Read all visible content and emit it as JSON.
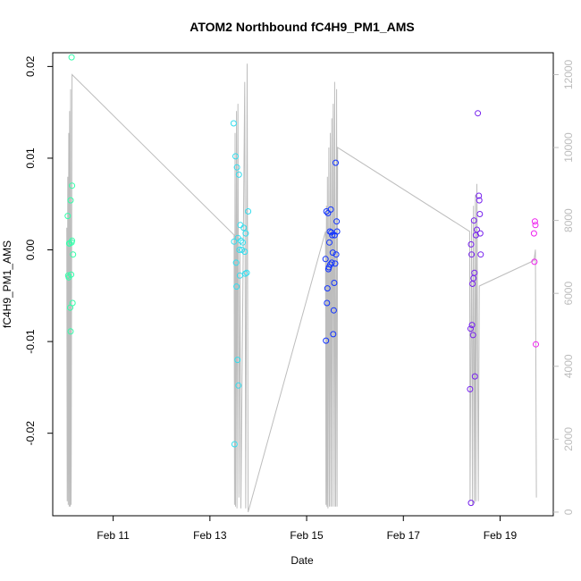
{
  "chart_data": {
    "type": "scatter",
    "title": "ATOM2 Northbound fC4H9_PM1_AMS",
    "xlabel": "Date",
    "ylabel": "fC4H9_PM1_AMS",
    "x_ticks": [
      "Feb 11",
      "Feb 13",
      "Feb 15",
      "Feb 17",
      "Feb 19"
    ],
    "x_tick_days": [
      11,
      13,
      15,
      17,
      19
    ],
    "xlim_days": [
      9.75,
      20.1
    ],
    "ylim": [
      -0.029,
      0.0215
    ],
    "y_ticks": [
      -0.02,
      -0.01,
      0.0,
      0.01,
      0.02
    ],
    "y_tick_labels": [
      "-0.02",
      "-0.01",
      "0.00",
      "0.01",
      "0.02"
    ],
    "y2_range": [
      -100,
      12600
    ],
    "y2_ticks": [
      0,
      2000,
      4000,
      6000,
      8000,
      10000,
      12000
    ],
    "y2_tick_labels": [
      "0",
      "2000",
      "4000",
      "6000",
      "8000",
      "10000",
      "12000"
    ],
    "altitude_color": "#bdbdbd",
    "point_colors": [
      "#33ffaa",
      "#33ddee",
      "#1133ff",
      "#7722ee",
      "#ee22ee"
    ],
    "points": [
      {
        "x": 10.06,
        "y": 0.0037,
        "c": 0
      },
      {
        "x": 10.07,
        "y": -0.0028,
        "c": 0
      },
      {
        "x": 10.08,
        "y": -0.003,
        "c": 0
      },
      {
        "x": 10.09,
        "y": 0.0007,
        "c": 0
      },
      {
        "x": 10.1,
        "y": 0.0007,
        "c": 0
      },
      {
        "x": 10.11,
        "y": -0.0063,
        "c": 0
      },
      {
        "x": 10.12,
        "y": -0.0089,
        "c": 0
      },
      {
        "x": 10.12,
        "y": 0.0054,
        "c": 0
      },
      {
        "x": 10.13,
        "y": -0.0027,
        "c": 0
      },
      {
        "x": 10.14,
        "y": 0.0008,
        "c": 0
      },
      {
        "x": 10.14,
        "y": 0.021,
        "c": 0
      },
      {
        "x": 10.15,
        "y": 0.007,
        "c": 0
      },
      {
        "x": 10.16,
        "y": -0.0058,
        "c": 0
      },
      {
        "x": 10.17,
        "y": -0.0005,
        "c": 0
      },
      {
        "x": 10.15,
        "y": 0.001,
        "c": 0
      },
      {
        "x": 13.49,
        "y": 0.0138,
        "c": 1
      },
      {
        "x": 13.5,
        "y": 0.0009,
        "c": 1
      },
      {
        "x": 13.51,
        "y": -0.0212,
        "c": 1
      },
      {
        "x": 13.53,
        "y": 0.0102,
        "c": 1
      },
      {
        "x": 13.54,
        "y": -0.0014,
        "c": 1
      },
      {
        "x": 13.55,
        "y": -0.004,
        "c": 1
      },
      {
        "x": 13.56,
        "y": 0.009,
        "c": 1
      },
      {
        "x": 13.57,
        "y": -0.012,
        "c": 1
      },
      {
        "x": 13.58,
        "y": 0.0013,
        "c": 1
      },
      {
        "x": 13.59,
        "y": -0.0148,
        "c": 1
      },
      {
        "x": 13.6,
        "y": 0.0082,
        "c": 1
      },
      {
        "x": 13.61,
        "y": 0.0,
        "c": 1
      },
      {
        "x": 13.62,
        "y": -0.0028,
        "c": 1
      },
      {
        "x": 13.63,
        "y": 0.0027,
        "c": 1
      },
      {
        "x": 13.64,
        "y": 0.001,
        "c": 1
      },
      {
        "x": 13.66,
        "y": 0.0,
        "c": 1
      },
      {
        "x": 13.68,
        "y": 0.0008,
        "c": 1
      },
      {
        "x": 13.7,
        "y": 0.0024,
        "c": 1
      },
      {
        "x": 13.72,
        "y": -0.0002,
        "c": 1
      },
      {
        "x": 13.73,
        "y": -0.0026,
        "c": 1
      },
      {
        "x": 13.74,
        "y": 0.0018,
        "c": 1
      },
      {
        "x": 13.76,
        "y": -0.0025,
        "c": 1
      },
      {
        "x": 13.79,
        "y": 0.0042,
        "c": 1
      },
      {
        "x": 15.39,
        "y": -0.001,
        "c": 2
      },
      {
        "x": 15.4,
        "y": -0.0099,
        "c": 2
      },
      {
        "x": 15.41,
        "y": 0.0042,
        "c": 2
      },
      {
        "x": 15.42,
        "y": -0.0058,
        "c": 2
      },
      {
        "x": 15.43,
        "y": -0.0042,
        "c": 2
      },
      {
        "x": 15.44,
        "y": 0.004,
        "c": 2
      },
      {
        "x": 15.45,
        "y": -0.0021,
        "c": 2
      },
      {
        "x": 15.46,
        "y": -0.0019,
        "c": 2
      },
      {
        "x": 15.47,
        "y": 0.0008,
        "c": 2
      },
      {
        "x": 15.48,
        "y": 0.002,
        "c": 2
      },
      {
        "x": 15.49,
        "y": -0.0016,
        "c": 2
      },
      {
        "x": 15.5,
        "y": 0.0044,
        "c": 2
      },
      {
        "x": 15.51,
        "y": 0.0019,
        "c": 2
      },
      {
        "x": 15.52,
        "y": -0.0014,
        "c": 2
      },
      {
        "x": 15.53,
        "y": 0.0016,
        "c": 2
      },
      {
        "x": 15.54,
        "y": -0.0003,
        "c": 2
      },
      {
        "x": 15.55,
        "y": -0.0092,
        "c": 2
      },
      {
        "x": 15.56,
        "y": -0.0066,
        "c": 2
      },
      {
        "x": 15.57,
        "y": -0.0036,
        "c": 2
      },
      {
        "x": 15.58,
        "y": 0.0016,
        "c": 2
      },
      {
        "x": 15.59,
        "y": -0.0015,
        "c": 2
      },
      {
        "x": 15.6,
        "y": 0.0095,
        "c": 2
      },
      {
        "x": 15.61,
        "y": -0.0005,
        "c": 2
      },
      {
        "x": 15.62,
        "y": 0.0031,
        "c": 2
      },
      {
        "x": 15.63,
        "y": 0.002,
        "c": 2
      },
      {
        "x": 18.38,
        "y": -0.0152,
        "c": 3
      },
      {
        "x": 18.39,
        "y": -0.0086,
        "c": 3
      },
      {
        "x": 18.4,
        "y": 0.0006,
        "c": 3
      },
      {
        "x": 18.41,
        "y": -0.0005,
        "c": 3
      },
      {
        "x": 18.42,
        "y": -0.0082,
        "c": 3
      },
      {
        "x": 18.43,
        "y": -0.0037,
        "c": 3
      },
      {
        "x": 18.44,
        "y": -0.0093,
        "c": 3
      },
      {
        "x": 18.45,
        "y": -0.0031,
        "c": 3
      },
      {
        "x": 18.46,
        "y": 0.0032,
        "c": 3
      },
      {
        "x": 18.47,
        "y": -0.0025,
        "c": 3
      },
      {
        "x": 18.48,
        "y": -0.0138,
        "c": 3
      },
      {
        "x": 18.5,
        "y": 0.0016,
        "c": 3
      },
      {
        "x": 18.52,
        "y": 0.0022,
        "c": 3
      },
      {
        "x": 18.54,
        "y": 0.0149,
        "c": 3
      },
      {
        "x": 18.56,
        "y": 0.0059,
        "c": 3
      },
      {
        "x": 18.57,
        "y": 0.0054,
        "c": 3
      },
      {
        "x": 18.58,
        "y": 0.0039,
        "c": 3
      },
      {
        "x": 18.59,
        "y": 0.0018,
        "c": 3
      },
      {
        "x": 18.6,
        "y": -0.0005,
        "c": 3
      },
      {
        "x": 18.4,
        "y": -0.0276,
        "c": 3
      },
      {
        "x": 19.7,
        "y": 0.0018,
        "c": 4
      },
      {
        "x": 19.71,
        "y": -0.0013,
        "c": 4
      },
      {
        "x": 19.72,
        "y": 0.0031,
        "c": 4
      },
      {
        "x": 19.73,
        "y": 0.0027,
        "c": 4
      },
      {
        "x": 19.74,
        "y": -0.0103,
        "c": 4
      }
    ],
    "altitude_trace": [
      [
        10.04,
        7800
      ],
      [
        10.05,
        300
      ],
      [
        10.06,
        9200
      ],
      [
        10.07,
        200
      ],
      [
        10.08,
        10400
      ],
      [
        10.09,
        150
      ],
      [
        10.1,
        11000
      ],
      [
        10.11,
        150
      ],
      [
        10.12,
        11600
      ],
      [
        10.13,
        200
      ],
      [
        10.15,
        12000
      ],
      [
        13.5,
        7600
      ],
      [
        13.51,
        200
      ],
      [
        13.52,
        10400
      ],
      [
        13.53,
        150
      ],
      [
        13.55,
        11000
      ],
      [
        13.56,
        100
      ],
      [
        13.58,
        11200
      ],
      [
        13.6,
        400
      ],
      [
        13.62,
        7400
      ],
      [
        13.64,
        100
      ],
      [
        13.72,
        11800
      ],
      [
        13.74,
        100
      ],
      [
        13.77,
        12300
      ],
      [
        13.79,
        0
      ],
      [
        15.39,
        7700
      ],
      [
        15.4,
        200
      ],
      [
        15.41,
        8400
      ],
      [
        15.42,
        150
      ],
      [
        15.43,
        9200
      ],
      [
        15.44,
        100
      ],
      [
        15.46,
        10000
      ],
      [
        15.47,
        150
      ],
      [
        15.49,
        10400
      ],
      [
        15.5,
        150
      ],
      [
        15.52,
        10800
      ],
      [
        15.53,
        150
      ],
      [
        15.55,
        11200
      ],
      [
        15.57,
        150
      ],
      [
        15.58,
        11800
      ],
      [
        15.6,
        150
      ],
      [
        15.62,
        11600
      ],
      [
        15.63,
        150
      ],
      [
        15.64,
        10000
      ],
      [
        18.37,
        7700
      ],
      [
        18.38,
        300
      ],
      [
        18.41,
        8000
      ],
      [
        18.43,
        200
      ],
      [
        18.45,
        8400
      ],
      [
        18.47,
        250
      ],
      [
        18.49,
        8700
      ],
      [
        18.5,
        300
      ],
      [
        18.52,
        9000
      ],
      [
        18.55,
        300
      ],
      [
        18.57,
        6200
      ],
      [
        19.7,
        6900
      ],
      [
        19.73,
        7200
      ],
      [
        19.75,
        400
      ]
    ]
  }
}
